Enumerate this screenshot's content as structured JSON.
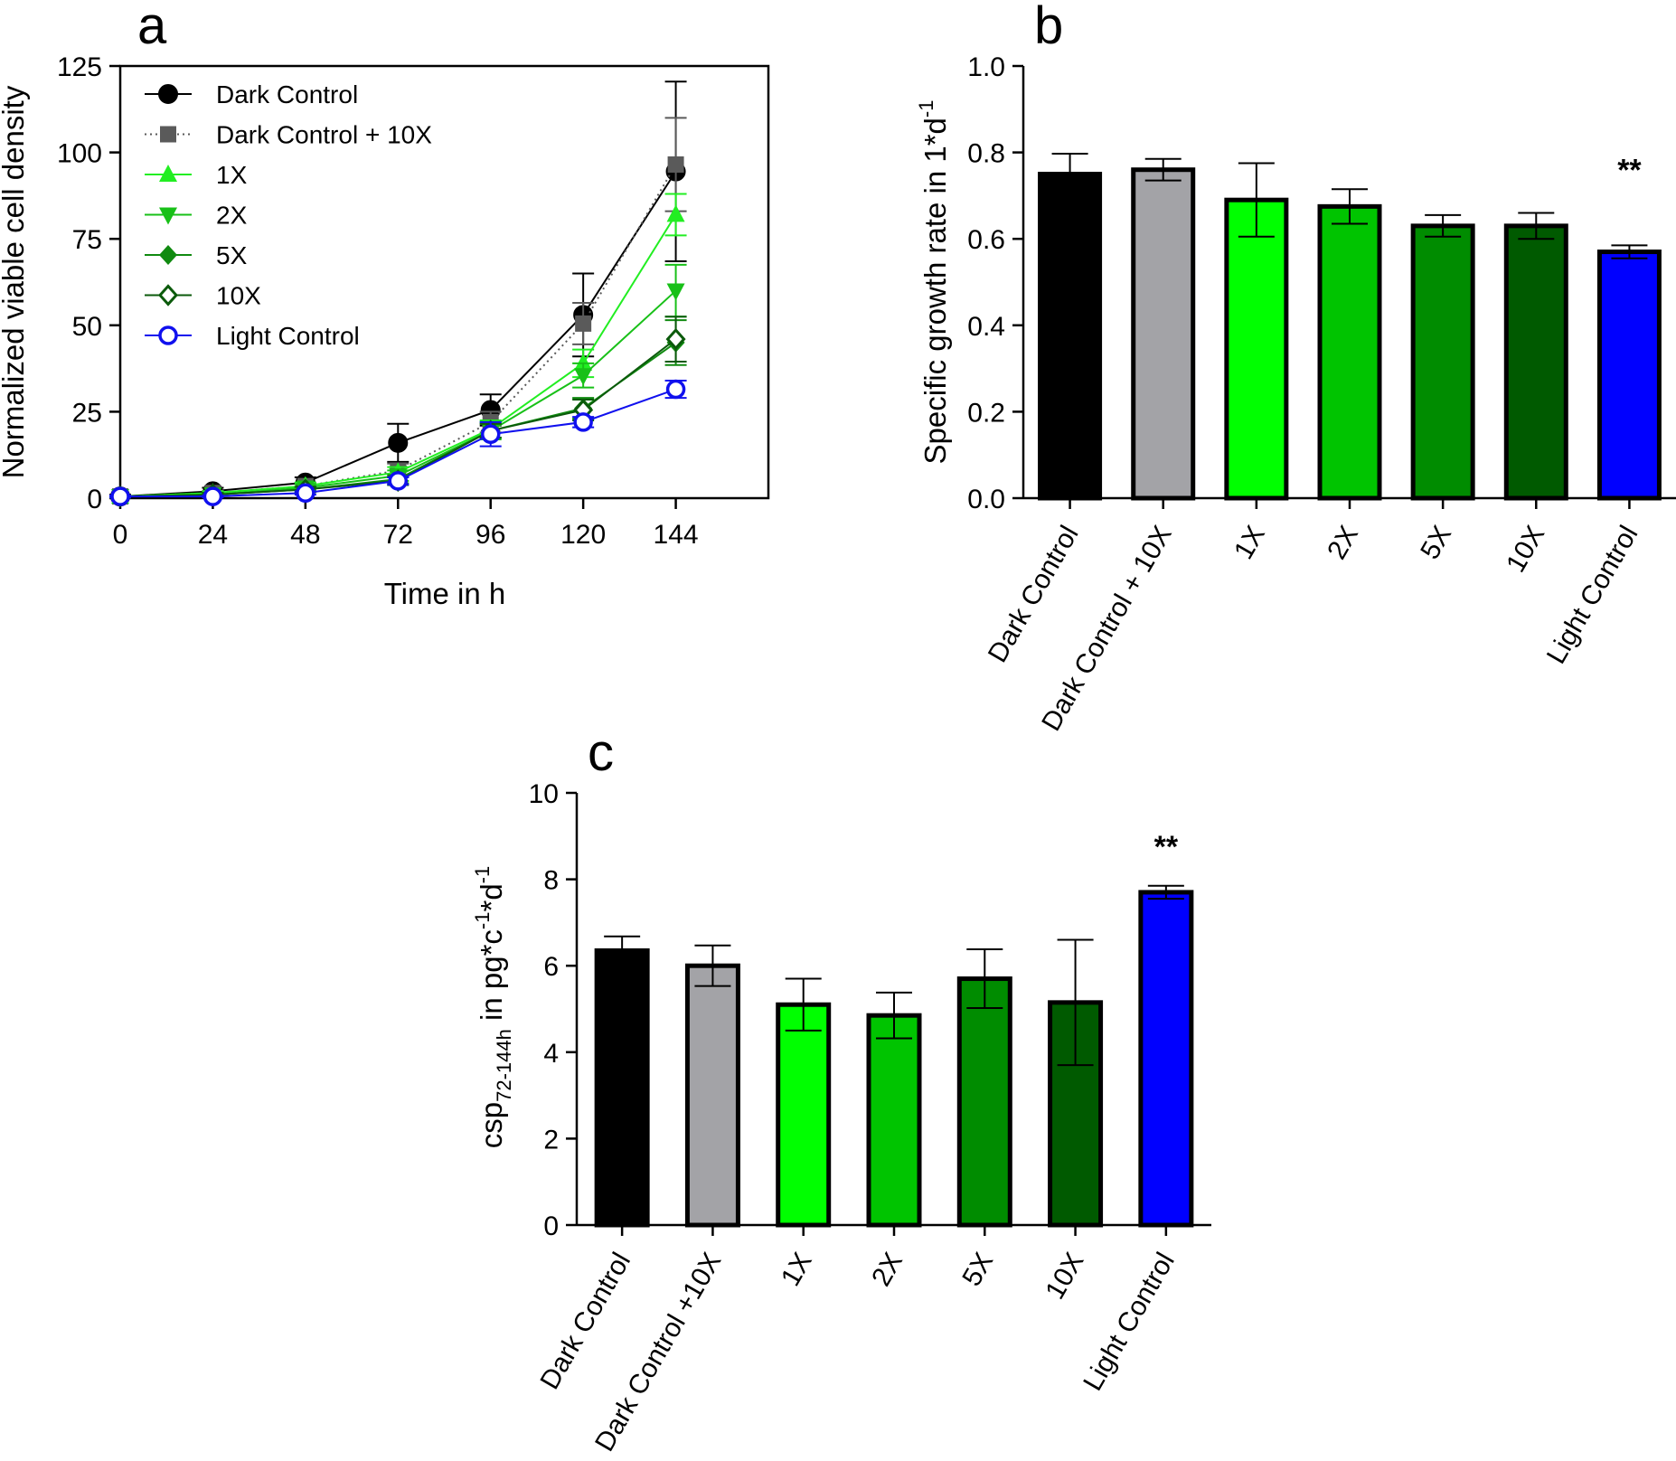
{
  "chart_data": [
    {
      "panel": "a",
      "type": "line",
      "xlabel": "Time in h",
      "ylabel": "Normalized viable cell density",
      "x": [
        0,
        24,
        48,
        72,
        96,
        120,
        144
      ],
      "xticks": [
        "0",
        "24",
        "48",
        "72",
        "96",
        "120",
        "144"
      ],
      "xlim": [
        0,
        168
      ],
      "ylim": [
        0,
        125
      ],
      "yticks": [
        "0",
        "25",
        "50",
        "75",
        "100",
        "125"
      ],
      "legend_position": "top-left",
      "grid": false,
      "series": [
        {
          "name": "Dark Control",
          "color": "#000000",
          "marker": "circle-filled",
          "line": "solid",
          "values": [
            0.5,
            2.0,
            4.5,
            16.0,
            25.5,
            53.0,
            94.5
          ],
          "errors": [
            0.5,
            1.0,
            1.5,
            5.5,
            4.5,
            12.0,
            26.0
          ]
        },
        {
          "name": "Dark Control + 10X",
          "color": "#5a5a5a",
          "marker": "square-filled",
          "line": "dotted",
          "values": [
            0.5,
            1.5,
            3.5,
            8.0,
            22.0,
            50.5,
            96.5
          ],
          "errors": [
            0.3,
            0.6,
            1.0,
            2.0,
            3.0,
            6.0,
            13.5
          ]
        },
        {
          "name": "1X",
          "color": "#22ee22",
          "marker": "triangle-up",
          "line": "solid",
          "values": [
            0.5,
            1.5,
            3.5,
            7.5,
            20.0,
            39.0,
            82.0
          ],
          "errors": [
            0.3,
            0.5,
            1.0,
            1.5,
            2.5,
            4.0,
            6.0
          ]
        },
        {
          "name": "2X",
          "color": "#18c018",
          "marker": "triangle-down",
          "line": "solid",
          "values": [
            0.5,
            1.0,
            3.0,
            6.5,
            19.5,
            35.5,
            60.0
          ],
          "errors": [
            0.3,
            0.5,
            1.0,
            1.5,
            2.5,
            3.5,
            7.5
          ]
        },
        {
          "name": "5X",
          "color": "#108a10",
          "marker": "diamond-filled",
          "line": "solid",
          "values": [
            0.5,
            1.0,
            2.5,
            5.5,
            19.5,
            26.0,
            45.0
          ],
          "errors": [
            0.3,
            0.5,
            0.8,
            1.2,
            2.0,
            3.0,
            6.5
          ]
        },
        {
          "name": "10X",
          "color": "#0b5a0b",
          "marker": "diamond-open",
          "line": "solid",
          "values": [
            0.5,
            1.0,
            2.5,
            5.0,
            19.5,
            25.5,
            46.0
          ],
          "errors": [
            0.3,
            0.5,
            0.8,
            1.2,
            2.0,
            3.0,
            6.5
          ]
        },
        {
          "name": "Light Control",
          "color": "#1010ee",
          "marker": "circle-open",
          "line": "solid",
          "values": [
            0.5,
            0.5,
            1.5,
            5.0,
            18.5,
            22.0,
            31.5
          ],
          "errors": [
            0.3,
            0.3,
            0.5,
            1.0,
            3.5,
            1.5,
            2.5
          ]
        }
      ]
    },
    {
      "panel": "b",
      "type": "bar",
      "ylabel": "Specific growth rate in 1*d",
      "ylabel_sup": "-1",
      "categories": [
        "Dark Control",
        "Dark Control + 10X",
        "1X",
        "2X",
        "5X",
        "10X",
        "Light Control"
      ],
      "values": [
        0.75,
        0.76,
        0.69,
        0.675,
        0.63,
        0.63,
        0.57
      ],
      "errors": [
        0.047,
        0.025,
        0.085,
        0.04,
        0.025,
        0.03,
        0.015
      ],
      "colors": [
        "#000000",
        "#a3a3a7",
        "#00ff00",
        "#00c400",
        "#008c00",
        "#005a00",
        "#0000ff"
      ],
      "ylim": [
        0,
        1.0
      ],
      "yticks": [
        "0.0",
        "0.2",
        "0.4",
        "0.6",
        "0.8",
        "1.0"
      ],
      "annotations": [
        {
          "category": "Light Control",
          "text": "**"
        }
      ]
    },
    {
      "panel": "c",
      "type": "bar",
      "ylabel_main": "csp",
      "ylabel_sub": "72-144h",
      "ylabel_mid": " in pg*c",
      "ylabel_sup1": "-1",
      "ylabel_mid2": "*d",
      "ylabel_sup2": "-1",
      "categories": [
        "Dark Control",
        "Dark Control +10X",
        "1X",
        "2X",
        "5X",
        "10X",
        "Light Control"
      ],
      "values": [
        6.35,
        6.0,
        5.1,
        4.85,
        5.7,
        5.15,
        7.7
      ],
      "errors": [
        0.33,
        0.47,
        0.6,
        0.53,
        0.68,
        1.45,
        0.15
      ],
      "colors": [
        "#000000",
        "#a3a3a7",
        "#00ff00",
        "#00c400",
        "#008c00",
        "#005a00",
        "#0000ff"
      ],
      "ylim": [
        0,
        10
      ],
      "yticks": [
        "0",
        "2",
        "4",
        "6",
        "8",
        "10"
      ],
      "annotations": [
        {
          "category": "Light Control",
          "text": "**"
        }
      ]
    }
  ],
  "panels": {
    "a": {
      "letter": "a"
    },
    "b": {
      "letter": "b"
    },
    "c": {
      "letter": "c"
    }
  }
}
